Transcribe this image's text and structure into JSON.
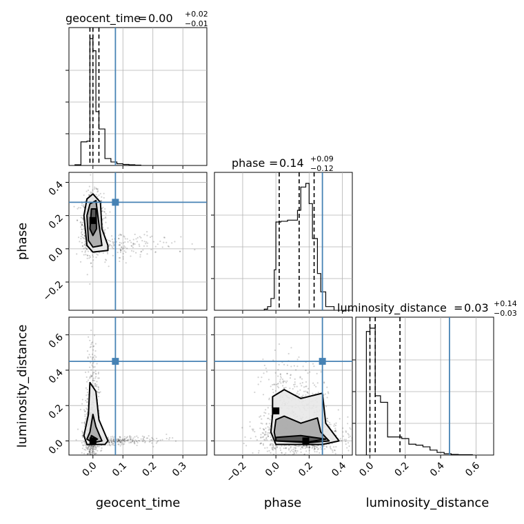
{
  "chart_data": {
    "type": "corner",
    "parameters": [
      "geocent_time",
      "phase",
      "luminosity_distance"
    ],
    "truths": [
      0.075,
      0.28,
      0.45
    ],
    "truth_color": "#4682b4",
    "axis_ranges": {
      "geocent_time": [
        -0.08,
        0.38
      ],
      "phase": [
        -0.37,
        0.46
      ],
      "luminosity_distance": [
        -0.08,
        0.7
      ]
    },
    "grid": true,
    "titles": [
      {
        "param": "geocent_time",
        "label": "geocent_time",
        "median": "0.00",
        "plus": "+0.02",
        "minus": "−0.01"
      },
      {
        "param": "phase",
        "label": "phase",
        "median": "0.14",
        "plus": "+0.09",
        "minus": "−0.12"
      },
      {
        "param": "luminosity_distance",
        "label": "luminosity_distance",
        "median": "0.03",
        "plus": "+0.14",
        "minus": "−0.03"
      }
    ],
    "ticks": {
      "geocent_time": {
        "values": [
          0.0,
          0.1,
          0.2,
          0.3
        ],
        "labels": [
          "0.0",
          "0.1",
          "0.2",
          "0.3"
        ]
      },
      "phase": {
        "values": [
          -0.2,
          0.0,
          0.2,
          0.4
        ],
        "labels": [
          "−0.2",
          "0.0",
          "0.2",
          "0.4"
        ]
      },
      "luminosity_distance": {
        "values": [
          0.0,
          0.2,
          0.4,
          0.6
        ],
        "labels": [
          "0.0",
          "0.2",
          "0.4",
          "0.6"
        ]
      }
    },
    "quantiles": {
      "geocent_time": [
        -0.01,
        0.0,
        0.02
      ],
      "phase": [
        0.02,
        0.14,
        0.23
      ],
      "luminosity_distance": [
        0.0,
        0.03,
        0.17
      ]
    },
    "histograms": {
      "geocent_time": {
        "edges": [
          -0.06,
          -0.04,
          -0.02,
          -0.01,
          0.0,
          0.01,
          0.02,
          0.04,
          0.06,
          0.08,
          0.1,
          0.12,
          0.14,
          0.16
        ],
        "counts": [
          2,
          68,
          70,
          365,
          330,
          155,
          105,
          20,
          10,
          5,
          3,
          2,
          1
        ]
      },
      "phase": {
        "edges": [
          -0.07,
          -0.05,
          -0.03,
          -0.01,
          0.0,
          0.03,
          0.07,
          0.1,
          0.13,
          0.15,
          0.18,
          0.2,
          0.22,
          0.25,
          0.27,
          0.3,
          0.35
        ],
        "counts": [
          3,
          10,
          32,
          110,
          240,
          242,
          245,
          245,
          272,
          335,
          345,
          290,
          195,
          100,
          50,
          10
        ]
      },
      "luminosity_distance": {
        "edges": [
          -0.02,
          0.0,
          0.03,
          0.06,
          0.1,
          0.14,
          0.18,
          0.22,
          0.26,
          0.3,
          0.34,
          0.38,
          0.42,
          0.46,
          0.5,
          0.54,
          0.58
        ],
        "counts": [
          375,
          385,
          180,
          160,
          55,
          55,
          50,
          33,
          30,
          25,
          15,
          8,
          4,
          2,
          1,
          1
        ]
      }
    },
    "density_blobs": {
      "phase_vs_geocent_time": [
        {
          "x": 0.0,
          "y": 0.15,
          "sx": 0.018,
          "sy": 0.09,
          "n": 900
        },
        {
          "x": 0.08,
          "y": 0.02,
          "sx": 0.06,
          "sy": 0.04,
          "n": 120
        },
        {
          "x": 0.2,
          "y": 0.03,
          "sx": 0.08,
          "sy": 0.03,
          "n": 40
        }
      ],
      "luminosity_distance_vs_geocent_time": [
        {
          "x": -0.005,
          "y": 0.05,
          "sx": 0.012,
          "sy": 0.1,
          "n": 700
        },
        {
          "x": 0.06,
          "y": 0.0,
          "sx": 0.05,
          "sy": 0.015,
          "n": 200
        },
        {
          "x": 0.15,
          "y": 0.01,
          "sx": 0.06,
          "sy": 0.01,
          "n": 60
        },
        {
          "x": 0.0,
          "y": 0.35,
          "sx": 0.01,
          "sy": 0.12,
          "n": 120
        }
      ],
      "luminosity_distance_vs_phase": [
        {
          "x": 0.15,
          "y": 0.03,
          "sx": 0.12,
          "sy": 0.05,
          "n": 1100
        },
        {
          "x": 0.12,
          "y": 0.2,
          "sx": 0.1,
          "sy": 0.1,
          "n": 300
        },
        {
          "x": 0.05,
          "y": 0.35,
          "sx": 0.06,
          "sy": 0.08,
          "n": 50
        }
      ]
    },
    "contours": {
      "phase_vs_geocent_time": [
        [
          [
            -0.02,
            0.3
          ],
          [
            0.0,
            0.33
          ],
          [
            0.025,
            0.28
          ],
          [
            0.03,
            0.12
          ],
          [
            0.05,
            0.02
          ],
          [
            0.05,
            -0.01
          ],
          [
            0.0,
            -0.02
          ],
          [
            -0.02,
            0.02
          ],
          [
            -0.03,
            0.2
          ]
        ],
        [
          [
            -0.01,
            0.27
          ],
          [
            0.01,
            0.29
          ],
          [
            0.02,
            0.15
          ],
          [
            0.03,
            0.02
          ],
          [
            0.0,
            0.01
          ],
          [
            -0.015,
            0.05
          ],
          [
            -0.02,
            0.2
          ]
        ],
        [
          [
            -0.005,
            0.24
          ],
          [
            0.01,
            0.24
          ],
          [
            0.012,
            0.12
          ],
          [
            0.0,
            0.08
          ],
          [
            -0.01,
            0.12
          ]
        ]
      ],
      "luminosity_distance_vs_geocent_time": [
        [
          [
            -0.01,
            0.33
          ],
          [
            0.01,
            0.28
          ],
          [
            0.02,
            0.12
          ],
          [
            0.05,
            0.0
          ],
          [
            0.04,
            -0.02
          ],
          [
            -0.02,
            -0.02
          ],
          [
            -0.03,
            0.03
          ],
          [
            -0.015,
            0.15
          ]
        ],
        [
          [
            0.0,
            0.15
          ],
          [
            0.01,
            0.08
          ],
          [
            0.03,
            0.0
          ],
          [
            0.0,
            -0.01
          ],
          [
            -0.02,
            0.01
          ],
          [
            -0.01,
            0.05
          ]
        ],
        [
          [
            -0.005,
            0.03
          ],
          [
            0.015,
            0.01
          ],
          [
            0.0,
            -0.005
          ],
          [
            -0.01,
            0.0
          ]
        ]
      ],
      "luminosity_distance_vs_phase": [
        [
          [
            -0.02,
            0.25
          ],
          [
            0.05,
            0.29
          ],
          [
            0.15,
            0.24
          ],
          [
            0.28,
            0.27
          ],
          [
            0.3,
            0.1
          ],
          [
            0.38,
            0.0
          ],
          [
            0.28,
            -0.02
          ],
          [
            0.0,
            -0.02
          ],
          [
            -0.03,
            0.05
          ],
          [
            -0.02,
            0.15
          ]
        ],
        [
          [
            0.0,
            0.12
          ],
          [
            0.05,
            0.14
          ],
          [
            0.15,
            0.1
          ],
          [
            0.25,
            0.13
          ],
          [
            0.27,
            0.05
          ],
          [
            0.32,
            0.0
          ],
          [
            0.2,
            -0.01
          ],
          [
            0.0,
            0.0
          ],
          [
            -0.01,
            0.05
          ]
        ],
        [
          [
            0.0,
            0.02
          ],
          [
            0.15,
            0.03
          ],
          [
            0.3,
            0.01
          ],
          [
            0.2,
            -0.005
          ],
          [
            0.0,
            0.0
          ]
        ]
      ]
    },
    "peak_points": {
      "phase_vs_geocent_time": [
        [
          0.0,
          0.17
        ]
      ],
      "luminosity_distance_vs_geocent_time": [
        [
          0.0,
          0.0
        ]
      ],
      "luminosity_distance_vs_phase": [
        [
          0.18,
          0.0
        ],
        [
          0.0,
          0.17
        ]
      ]
    }
  }
}
